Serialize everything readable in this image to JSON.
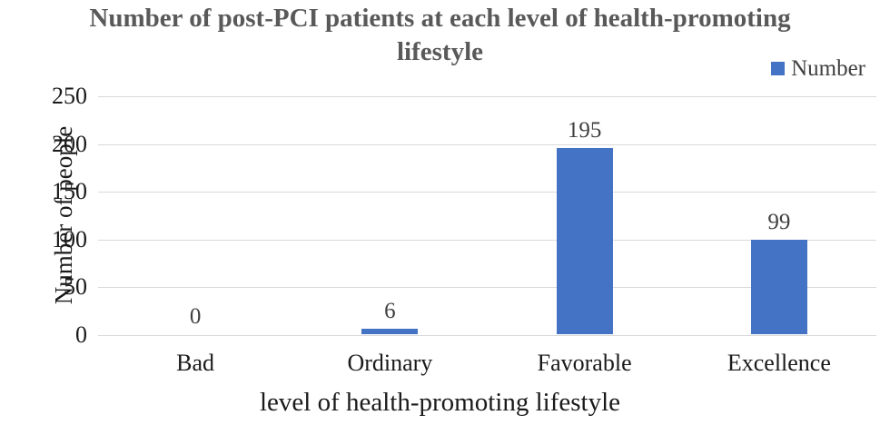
{
  "chart_data": {
    "type": "bar",
    "title": "Number of post-PCI patients at each level of health-promoting lifestyle",
    "categories": [
      "Bad",
      "Ordinary",
      "Favorable",
      "Excellence"
    ],
    "values": [
      0,
      6,
      195,
      99
    ],
    "data_labels": [
      "0",
      "6",
      "195",
      "99"
    ],
    "xlabel": "level of health-promoting lifestyle",
    "ylabel": "Number of people",
    "ylim": [
      0,
      250
    ],
    "yticks": [
      0,
      50,
      100,
      150,
      200,
      250
    ],
    "grid": "horizontal",
    "legend": {
      "label": "Number",
      "position": "top-right"
    },
    "colors": {
      "bar": "#4472C4",
      "gridline": "#D9D9D9",
      "title_text": "#595959",
      "data_label_text": "#404040",
      "axis_text": "#1a1a1a"
    }
  }
}
